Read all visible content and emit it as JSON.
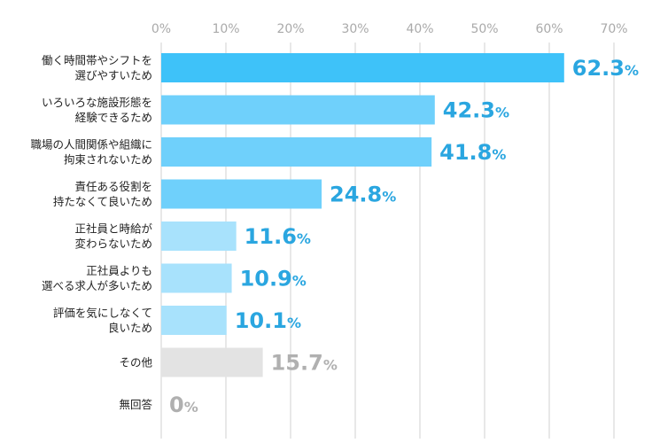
{
  "chart_data": {
    "type": "bar",
    "orientation": "horizontal",
    "title": "",
    "xlabel": "",
    "ylabel": "",
    "xlim": [
      0,
      70
    ],
    "grid": true,
    "ticks": [
      {
        "value": 0,
        "label": "0%"
      },
      {
        "value": 10,
        "label": "10%"
      },
      {
        "value": 20,
        "label": "20%"
      },
      {
        "value": 30,
        "label": "30%"
      },
      {
        "value": 40,
        "label": "40%"
      },
      {
        "value": 50,
        "label": "50%"
      },
      {
        "value": 60,
        "label": "60%"
      },
      {
        "value": 70,
        "label": "70%"
      }
    ],
    "categories": [
      [
        "働く時間帯やシフトを",
        "選びやすいため"
      ],
      [
        "いろいろな施設形態を",
        "経験できるため"
      ],
      [
        "職場の人間関係や組織に",
        "拘束されないため"
      ],
      [
        "責任ある役割を",
        "持たなくて良いため"
      ],
      [
        "正社員と時給が",
        "変わらないため"
      ],
      [
        "正社員よりも",
        "選べる求人が多いため"
      ],
      [
        "評価を気にしなくて",
        "良いため"
      ],
      [
        "その他"
      ],
      [
        "無回答"
      ]
    ],
    "values": [
      62.3,
      42.3,
      41.8,
      24.8,
      11.6,
      10.9,
      10.1,
      15.7,
      0
    ],
    "value_labels": [
      {
        "number": "62.3",
        "unit": "%"
      },
      {
        "number": "42.3",
        "unit": "%"
      },
      {
        "number": "41.8",
        "unit": "%"
      },
      {
        "number": "24.8",
        "unit": "%"
      },
      {
        "number": "11.6",
        "unit": "%"
      },
      {
        "number": "10.9",
        "unit": "%"
      },
      {
        "number": "10.1",
        "unit": "%"
      },
      {
        "number": "15.7",
        "unit": "%"
      },
      {
        "number": "0",
        "unit": "%"
      }
    ],
    "bar_colors": [
      "#3ec2f9",
      "#6fd0fb",
      "#6fd0fb",
      "#6fd0fb",
      "#a8e2fc",
      "#a8e2fc",
      "#a8e2fc",
      "#e3e3e3",
      "#e3e3e3"
    ],
    "label_colors": [
      "#2aa6e0",
      "#2aa6e0",
      "#2aa6e0",
      "#2aa6e0",
      "#2aa6e0",
      "#2aa6e0",
      "#2aa6e0",
      "#b0b0b0",
      "#b0b0b0"
    ],
    "grid_color": "#d9d9d9"
  }
}
